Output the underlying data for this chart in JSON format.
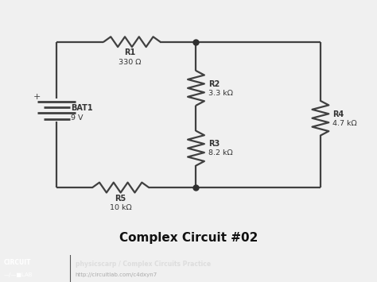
{
  "bg_color": "#f0f0f0",
  "line_color": "#404040",
  "dot_color": "#303030",
  "title": "Complex Circuit #02",
  "title_fontsize": 11,
  "title_fontweight": "bold",
  "footer_bg": "#1a1a1a",
  "footer_text1": "physicscarp / Complex Circuits Practice",
  "footer_text2": "http://circuitlab.com/c4dxyn7",
  "footer_text_color": "#cccccc",
  "resistor_label_color": "#333333",
  "resistors": {
    "R1": {
      "label": "R1",
      "value": "330 Ω"
    },
    "R2": {
      "label": "R2",
      "value": "3.3 kΩ"
    },
    "R3": {
      "label": "R3",
      "value": "8.2 kΩ"
    },
    "R4": {
      "label": "R4",
      "value": "4.7 kΩ"
    },
    "R5": {
      "label": "R5",
      "value": "10 kΩ"
    }
  },
  "battery": {
    "label": "BAT1",
    "value": "9 V"
  },
  "figsize": [
    4.74,
    3.55
  ],
  "dpi": 100
}
